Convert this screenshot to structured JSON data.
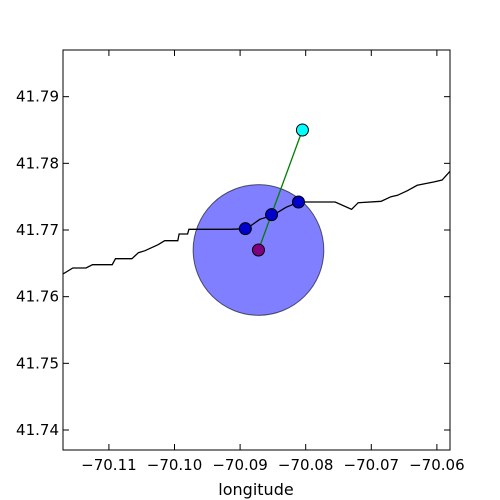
{
  "chart_data": {
    "type": "scatter",
    "title": "",
    "xlabel": "longitude",
    "ylabel": "",
    "xlim": [
      -70.117,
      -70.058
    ],
    "ylim": [
      41.737,
      41.797
    ],
    "grid": false,
    "legend": "none",
    "x_ticks": [
      -70.11,
      -70.1,
      -70.09,
      -70.08,
      -70.07,
      -70.06
    ],
    "x_tick_labels": [
      "−70.11",
      "−70.10",
      "−70.09",
      "−70.08",
      "−70.07",
      "−70.06"
    ],
    "y_ticks": [
      41.74,
      41.75,
      41.76,
      41.77,
      41.78,
      41.79
    ],
    "y_tick_labels": [
      "41.74",
      "41.75",
      "41.76",
      "41.77",
      "41.78",
      "41.79"
    ],
    "road_line": {
      "color": "#000000",
      "points": [
        [
          -70.117,
          41.7634
        ],
        [
          -70.1155,
          41.7643
        ],
        [
          -70.1135,
          41.7643
        ],
        [
          -70.1125,
          41.7648
        ],
        [
          -70.1095,
          41.7648
        ],
        [
          -70.109,
          41.7657
        ],
        [
          -70.1065,
          41.7657
        ],
        [
          -70.1055,
          41.7666
        ],
        [
          -70.1045,
          41.7669
        ],
        [
          -70.1025,
          41.7678
        ],
        [
          -70.1015,
          41.7684
        ],
        [
          -70.0995,
          41.7684
        ],
        [
          -70.0993,
          41.7694
        ],
        [
          -70.098,
          41.7694
        ],
        [
          -70.0978,
          41.7701
        ],
        [
          -70.0915,
          41.7701
        ],
        [
          -70.089,
          41.7702
        ],
        [
          -70.087,
          41.7716
        ],
        [
          -70.085,
          41.7722
        ],
        [
          -70.083,
          41.7734
        ],
        [
          -70.081,
          41.7742
        ],
        [
          -70.0755,
          41.7742
        ],
        [
          -70.073,
          41.7731
        ],
        [
          -70.072,
          41.7741
        ],
        [
          -70.0685,
          41.7743
        ],
        [
          -70.067,
          41.775
        ],
        [
          -70.066,
          41.7752
        ],
        [
          -70.0645,
          41.7759
        ],
        [
          -70.063,
          41.7767
        ],
        [
          -70.0605,
          41.7772
        ],
        [
          -70.0592,
          41.7775
        ],
        [
          -70.058,
          41.7788
        ]
      ]
    },
    "radius_circle": {
      "center": [
        -70.0872,
        41.767
      ],
      "radius_deg": 0.0098,
      "fill": "#0000ff",
      "fill_opacity": 0.5
    },
    "connector_line": {
      "color": "#007f00",
      "from": [
        -70.0872,
        41.767
      ],
      "to": [
        -70.0805,
        41.785
      ]
    },
    "points": [
      {
        "role": "query",
        "x": -70.0805,
        "y": 41.785,
        "color": "#00ffff"
      },
      {
        "role": "center",
        "x": -70.0872,
        "y": 41.767,
        "color": "#800080"
      },
      {
        "role": "match",
        "x": -70.0892,
        "y": 41.7702,
        "color": "#0000cd"
      },
      {
        "role": "match",
        "x": -70.0852,
        "y": 41.7723,
        "color": "#0000cd"
      },
      {
        "role": "match",
        "x": -70.0811,
        "y": 41.7742,
        "color": "#0000cd"
      }
    ]
  }
}
